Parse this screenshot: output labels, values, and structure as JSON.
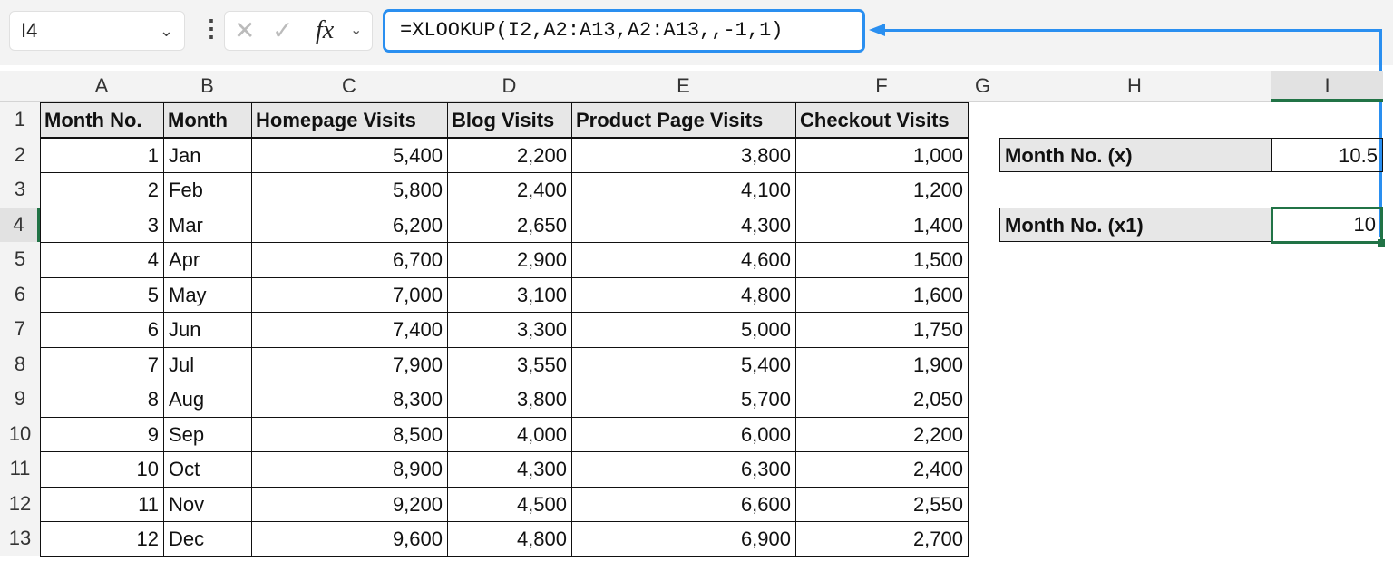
{
  "name_box": "I4",
  "formula_bar": {
    "cancel_icon": "x-icon",
    "enter_icon": "check-icon",
    "fx_label": "fx",
    "formula": "=XLOOKUP(I2,A2:A13,A2:A13,,-1,1)"
  },
  "columns": [
    "A",
    "B",
    "C",
    "D",
    "E",
    "F",
    "G",
    "H",
    "I"
  ],
  "rows": [
    "1",
    "2",
    "3",
    "4",
    "5",
    "6",
    "7",
    "8",
    "9",
    "10",
    "11",
    "12",
    "13"
  ],
  "table": {
    "headers": [
      "Month No.",
      "Month",
      "Homepage Visits",
      "Blog Visits",
      "Product Page Visits",
      "Checkout Visits"
    ],
    "data": [
      [
        "1",
        "Jan",
        "5,400",
        "2,200",
        "3,800",
        "1,000"
      ],
      [
        "2",
        "Feb",
        "5,800",
        "2,400",
        "4,100",
        "1,200"
      ],
      [
        "3",
        "Mar",
        "6,200",
        "2,650",
        "4,300",
        "1,400"
      ],
      [
        "4",
        "Apr",
        "6,700",
        "2,900",
        "4,600",
        "1,500"
      ],
      [
        "5",
        "May",
        "7,000",
        "3,100",
        "4,800",
        "1,600"
      ],
      [
        "6",
        "Jun",
        "7,400",
        "3,300",
        "5,000",
        "1,750"
      ],
      [
        "7",
        "Jul",
        "7,900",
        "3,550",
        "5,400",
        "1,900"
      ],
      [
        "8",
        "Aug",
        "8,300",
        "3,800",
        "5,700",
        "2,050"
      ],
      [
        "9",
        "Sep",
        "8,500",
        "4,000",
        "6,000",
        "2,200"
      ],
      [
        "10",
        "Oct",
        "8,900",
        "4,300",
        "6,300",
        "2,400"
      ],
      [
        "11",
        "Nov",
        "9,200",
        "4,500",
        "6,600",
        "2,550"
      ],
      [
        "12",
        "Dec",
        "9,600",
        "4,800",
        "6,900",
        "2,700"
      ]
    ]
  },
  "lookup": {
    "x_label": "Month No. (x)",
    "x_value": "10.5",
    "x1_label": "Month No. (x1)",
    "x1_value": "10"
  },
  "colors": {
    "accent": "#2a8ff0",
    "selection": "#217346"
  }
}
